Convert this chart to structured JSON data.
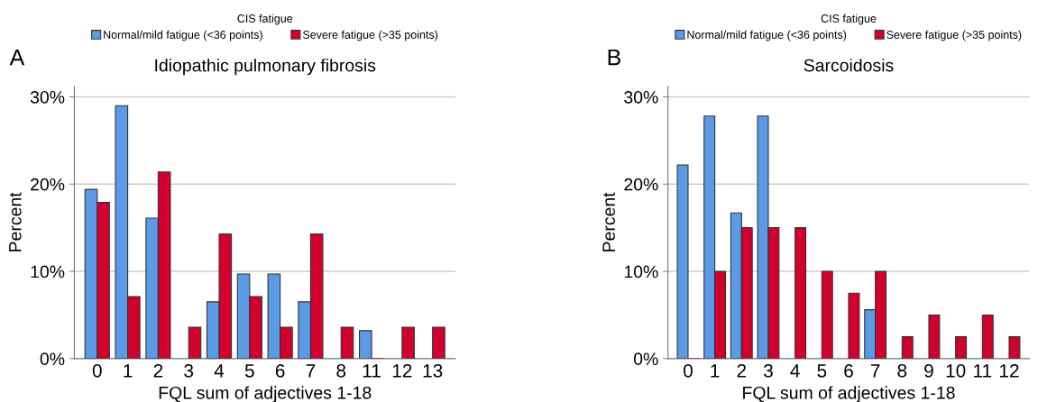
{
  "chart_data": [
    {
      "type": "bar",
      "title": "Idiopathic pulmonary fibrosis",
      "xlabel": "FQL sum of adjectives 1-18",
      "ylabel": "Percent",
      "legend_title": "CIS fatigue",
      "annotations": [
        "A"
      ],
      "categories": [
        "0",
        "1",
        "2",
        "3",
        "4",
        "5",
        "6",
        "7",
        "8",
        "11",
        "12",
        "13"
      ],
      "series": [
        {
          "name": "Normal/mild fatigue (<36 points)",
          "color": "#5b9be6",
          "values": [
            19.4,
            29.0,
            16.1,
            0,
            6.5,
            9.7,
            9.7,
            6.5,
            0,
            3.2,
            0,
            0
          ]
        },
        {
          "name": "Severe fatigue (>35 points)",
          "color": "#d2002d",
          "values": [
            17.9,
            7.1,
            21.4,
            3.6,
            14.3,
            7.1,
            3.6,
            14.3,
            3.6,
            0,
            3.6,
            3.6
          ]
        }
      ],
      "ylim": [
        0,
        31.2
      ],
      "yticks": [
        {
          "value": 0,
          "label": "0%"
        },
        {
          "value": 10,
          "label": "10%"
        },
        {
          "value": 20,
          "label": "20%"
        },
        {
          "value": 30,
          "label": "30%"
        }
      ],
      "grid": "y",
      "legend": "top"
    },
    {
      "type": "bar",
      "title": "Sarcoidosis",
      "xlabel": "FQL sum of adjectives 1-18",
      "ylabel": "Percent",
      "legend_title": "CIS fatigue",
      "annotations": [
        "B"
      ],
      "categories": [
        "0",
        "1",
        "2",
        "3",
        "4",
        "5",
        "6",
        "7",
        "8",
        "9",
        "10",
        "11",
        "12"
      ],
      "series": [
        {
          "name": "Normal/mild fatigue (<36 points)",
          "color": "#5b9be6",
          "values": [
            22.2,
            27.8,
            16.7,
            27.8,
            0,
            0,
            0,
            5.6,
            0,
            0,
            0,
            0,
            0
          ]
        },
        {
          "name": "Severe fatigue (>35 points)",
          "color": "#d2002d",
          "values": [
            0,
            10,
            15,
            15,
            15,
            10,
            7.5,
            10,
            2.5,
            5,
            2.5,
            5,
            2.5
          ]
        }
      ],
      "ylim": [
        0,
        31.2
      ],
      "yticks": [
        {
          "value": 0,
          "label": "0%"
        },
        {
          "value": 10,
          "label": "10%"
        },
        {
          "value": 20,
          "label": "20%"
        },
        {
          "value": 30,
          "label": "30%"
        }
      ],
      "grid": "y",
      "legend": "top"
    }
  ]
}
